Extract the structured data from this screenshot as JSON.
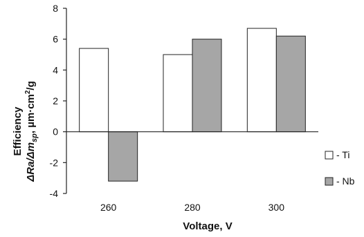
{
  "chart_data": {
    "type": "bar",
    "categories": [
      "260",
      "280",
      "300"
    ],
    "series": [
      {
        "name": "- Ti",
        "values": [
          5.4,
          5.0,
          6.7
        ],
        "color": "#ffffff",
        "stroke": "#222222"
      },
      {
        "name": "- Nb",
        "values": [
          -3.2,
          6.0,
          6.2
        ],
        "color": "#a6a6a6",
        "stroke": "#222222"
      }
    ],
    "title": "",
    "xlabel": "Voltage, V",
    "ylabel": {
      "line1": "Efficiency",
      "line2_parts": [
        "ΔRa/Δm",
        "sp",
        ", µm·cm",
        "2",
        "/g"
      ]
    },
    "ylim": [
      -4,
      8
    ],
    "yticks": [
      "-4",
      "-2",
      "0",
      "2",
      "4",
      "6",
      "8"
    ],
    "grid": false,
    "legend_position": "right"
  }
}
